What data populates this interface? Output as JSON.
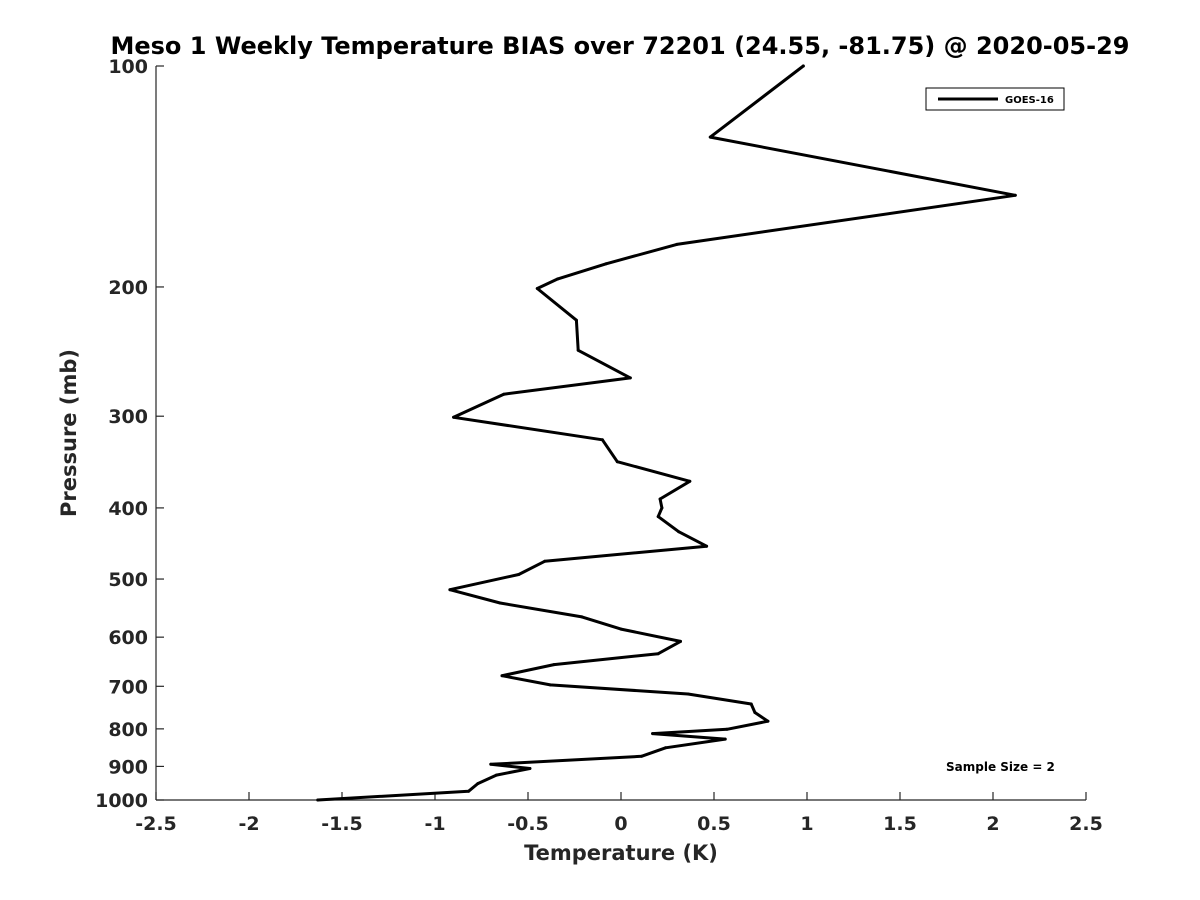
{
  "chart_data": {
    "type": "line",
    "title": "Meso 1 Weekly Temperature BIAS over 72201 (24.55, -81.75) @ 2020-05-29",
    "xlabel": "Temperature (K)",
    "ylabel": "Pressure (mb)",
    "xlim": [
      -2.5,
      2.5
    ],
    "ylim": [
      100,
      1000
    ],
    "y_scale": "log",
    "y_direction": "reversed",
    "x_ticks": [
      -2.5,
      -2,
      -1.5,
      -1,
      -0.5,
      0,
      0.5,
      1,
      1.5,
      2,
      2.5
    ],
    "x_tick_labels": [
      "-2.5",
      "-2",
      "-1.5",
      "-1",
      "-0.5",
      "0",
      "0.5",
      "1",
      "1.5",
      "2",
      "2.5"
    ],
    "y_ticks": [
      100,
      200,
      300,
      400,
      500,
      600,
      700,
      800,
      900,
      1000
    ],
    "y_tick_labels": [
      "100",
      "200",
      "300",
      "400",
      "500",
      "600",
      "700",
      "800",
      "900",
      "1000"
    ],
    "grid": false,
    "legend_position": "top-right",
    "annotation": "Sample Size = 2",
    "series": [
      {
        "name": "GOES-16",
        "color": "#000000",
        "points": [
          [
            0.98,
            100
          ],
          [
            0.48,
            125
          ],
          [
            2.12,
            150
          ],
          [
            0.3,
            175
          ],
          [
            -0.08,
            186
          ],
          [
            -0.34,
            195
          ],
          [
            -0.45,
            201
          ],
          [
            -0.24,
            222
          ],
          [
            -0.23,
            244
          ],
          [
            0.05,
            266
          ],
          [
            -0.63,
            280
          ],
          [
            -0.9,
            301
          ],
          [
            -0.1,
            323
          ],
          [
            -0.02,
            346
          ],
          [
            0.37,
            368
          ],
          [
            0.21,
            389
          ],
          [
            0.22,
            400
          ],
          [
            0.2,
            411
          ],
          [
            0.31,
            431
          ],
          [
            0.46,
            451
          ],
          [
            -0.41,
            473
          ],
          [
            -0.55,
            493
          ],
          [
            -0.92,
            517
          ],
          [
            -0.65,
            539
          ],
          [
            -0.21,
            563
          ],
          [
            0.0,
            585
          ],
          [
            0.32,
            608
          ],
          [
            0.2,
            632
          ],
          [
            -0.36,
            654
          ],
          [
            -0.64,
            677
          ],
          [
            -0.38,
            697
          ],
          [
            0.36,
            717
          ],
          [
            0.7,
            740
          ],
          [
            0.72,
            760
          ],
          [
            0.79,
            781
          ],
          [
            0.57,
            801
          ],
          [
            0.17,
            812
          ],
          [
            0.56,
            826
          ],
          [
            0.24,
            849
          ],
          [
            0.11,
            872
          ],
          [
            -0.7,
            894
          ],
          [
            -0.49,
            906
          ],
          [
            -0.67,
            925
          ],
          [
            -0.77,
            950
          ],
          [
            -0.82,
            973
          ],
          [
            -1.63,
            1000
          ]
        ]
      }
    ]
  }
}
